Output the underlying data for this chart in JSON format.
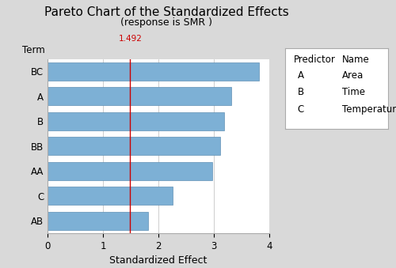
{
  "title": "Pareto Chart of the Standardized Effects",
  "subtitle": "(response is SMR )",
  "xlabel": "Standardized Effect",
  "ylabel": "Term",
  "terms": [
    "BC",
    "A",
    "B",
    "BB",
    "AA",
    "C",
    "AB"
  ],
  "values": [
    3.82,
    3.32,
    3.18,
    3.12,
    2.97,
    2.25,
    1.82
  ],
  "bar_color": "#7db0d5",
  "bar_edge_color": "#6090b5",
  "reference_line": 1.492,
  "reference_line_color": "#cc0000",
  "xlim": [
    0,
    4
  ],
  "xticks": [
    0,
    1,
    2,
    3,
    4
  ],
  "legend_predictors": [
    "A",
    "B",
    "C"
  ],
  "legend_names": [
    "Area",
    "Time",
    "Temperature"
  ],
  "background_color": "#d9d9d9",
  "plot_background_color": "#ffffff",
  "title_fontsize": 11,
  "subtitle_fontsize": 9,
  "axis_label_fontsize": 9,
  "tick_fontsize": 8.5,
  "legend_fontsize": 8.5
}
